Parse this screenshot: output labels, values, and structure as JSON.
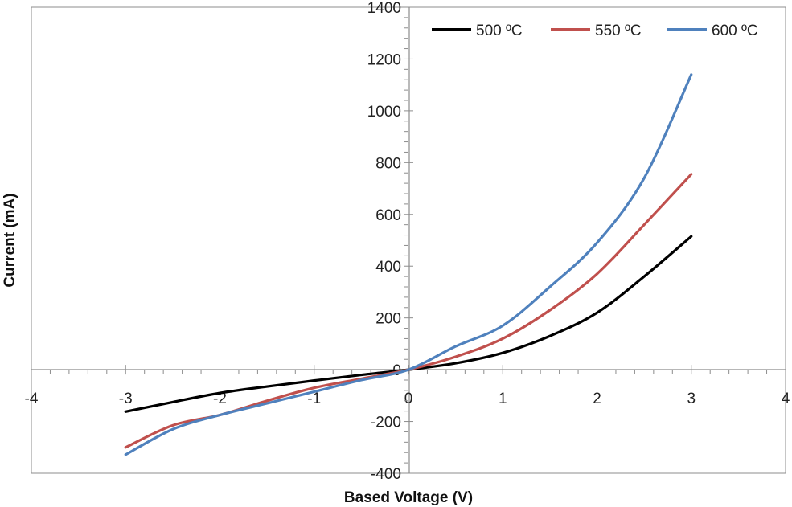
{
  "chart_data": {
    "type": "line",
    "title": "",
    "xlabel": "Based Voltage (V)",
    "ylabel": "Current (mA)",
    "xlim": [
      -4,
      4
    ],
    "ylim": [
      -400,
      1400
    ],
    "x_ticks": [
      -4,
      -3,
      -2,
      -1,
      0,
      1,
      2,
      3,
      4
    ],
    "x_tick_labels": [
      "-4",
      "-3",
      "-2",
      "-1",
      "0",
      "1",
      "2",
      "3",
      "4"
    ],
    "y_ticks": [
      -400,
      -200,
      0,
      200,
      400,
      600,
      800,
      1000,
      1200,
      1400
    ],
    "y_tick_labels": [
      "-400",
      "-200",
      "0",
      "200",
      "400",
      "600",
      "800",
      "1000",
      "1200",
      "1400"
    ],
    "grid": false,
    "legend_position": "top-right",
    "series": [
      {
        "name": "500 ºC",
        "color": "#000000",
        "x": [
          -3,
          -2.5,
          -2,
          -1.5,
          -1,
          -0.5,
          0,
          0.5,
          1,
          1.5,
          2,
          2.5,
          3
        ],
        "y": [
          -162,
          -125,
          -90,
          -65,
          -42,
          -20,
          0,
          25,
          65,
          130,
          220,
          360,
          515
        ]
      },
      {
        "name": "550 ºC",
        "color": "#C0504D",
        "x": [
          -3,
          -2.5,
          -2,
          -1.5,
          -1,
          -0.5,
          0,
          0.5,
          1,
          1.5,
          2,
          2.5,
          3
        ],
        "y": [
          -300,
          -215,
          -175,
          -120,
          -70,
          -35,
          0,
          50,
          120,
          230,
          370,
          560,
          755
        ]
      },
      {
        "name": "600 ºC",
        "color": "#4F81BD",
        "x": [
          -3,
          -2.5,
          -2,
          -1.5,
          -1,
          -0.5,
          0,
          0.5,
          1,
          1.5,
          2,
          2.5,
          3
        ],
        "y": [
          -328,
          -230,
          -175,
          -130,
          -85,
          -40,
          0,
          90,
          170,
          320,
          490,
          740,
          1140
        ]
      }
    ]
  }
}
